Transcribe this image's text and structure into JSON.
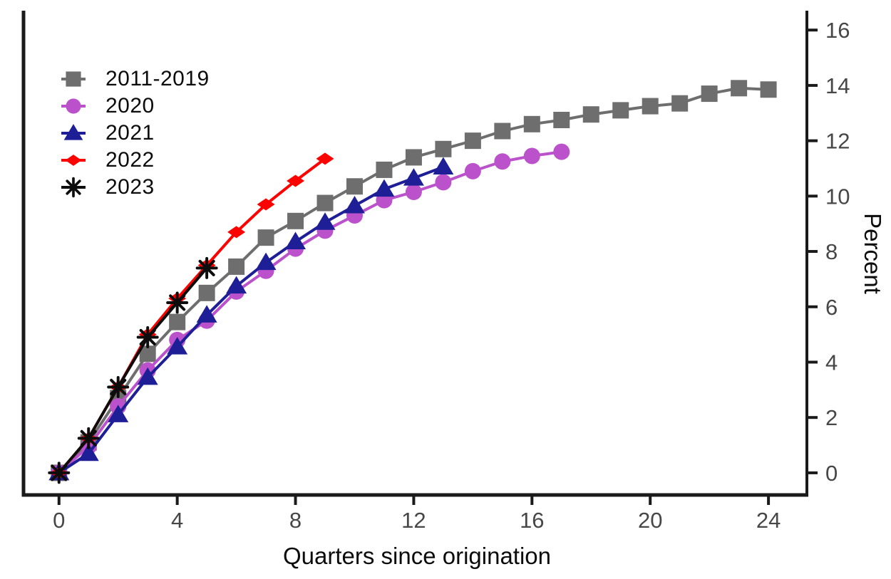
{
  "figure": {
    "background": "#ffffff",
    "axis_color": "#1a1a1a",
    "tick_label_color": "#474747"
  },
  "chart_data": {
    "type": "line",
    "title": "",
    "xlabel": "Quarters since origination",
    "ylabel": "Percent",
    "x_ticks": [
      0,
      4,
      8,
      12,
      16,
      20,
      24
    ],
    "y_ticks": [
      0,
      2,
      4,
      6,
      8,
      10,
      12,
      14,
      16
    ],
    "xlim": [
      -1.2,
      25.3
    ],
    "ylim": [
      -0.8,
      16.7
    ],
    "grid": false,
    "legend_position": "top-left",
    "y_axis_side": "right",
    "series": [
      {
        "name": "2011-2019",
        "marker": "square",
        "color": "#6e6e6e",
        "x": [
          0,
          1,
          2,
          3,
          4,
          5,
          6,
          7,
          8,
          9,
          10,
          11,
          12,
          13,
          14,
          15,
          16,
          17,
          18,
          19,
          20,
          21,
          22,
          23,
          24
        ],
        "values": [
          0,
          1.1,
          2.7,
          4.3,
          5.45,
          6.5,
          7.45,
          8.5,
          9.1,
          9.75,
          10.35,
          10.95,
          11.4,
          11.7,
          12.0,
          12.35,
          12.6,
          12.75,
          12.95,
          13.1,
          13.25,
          13.35,
          13.7,
          13.9,
          13.85
        ]
      },
      {
        "name": "2020",
        "marker": "circle",
        "color": "#bb52cc",
        "x": [
          0,
          1,
          2,
          3,
          4,
          5,
          6,
          7,
          8,
          9,
          10,
          11,
          12,
          13,
          14,
          15,
          16,
          17
        ],
        "values": [
          0,
          0.95,
          2.4,
          3.7,
          4.8,
          5.5,
          6.55,
          7.3,
          8.1,
          8.75,
          9.3,
          9.85,
          10.15,
          10.5,
          10.9,
          11.25,
          11.45,
          11.6
        ]
      },
      {
        "name": "2021",
        "marker": "triangle",
        "color": "#1e1e96",
        "x": [
          0,
          1,
          2,
          3,
          4,
          5,
          6,
          7,
          8,
          9,
          10,
          11,
          12,
          13
        ],
        "values": [
          0,
          0.7,
          2.1,
          3.45,
          4.55,
          5.7,
          6.75,
          7.6,
          8.35,
          9.05,
          9.65,
          10.25,
          10.65,
          11.05
        ]
      },
      {
        "name": "2022",
        "marker": "diamond",
        "color": "#fb0300",
        "x": [
          0,
          1,
          2,
          3,
          4,
          5,
          6,
          7,
          8,
          9
        ],
        "values": [
          0,
          1.25,
          3.1,
          5.0,
          6.3,
          7.5,
          8.7,
          9.7,
          10.55,
          11.35
        ]
      },
      {
        "name": "2023",
        "marker": "asterisk",
        "color": "#0d0d0d",
        "x": [
          0,
          1,
          2,
          3,
          4,
          5
        ],
        "values": [
          0,
          1.25,
          3.1,
          4.9,
          6.15,
          7.4
        ]
      }
    ]
  }
}
